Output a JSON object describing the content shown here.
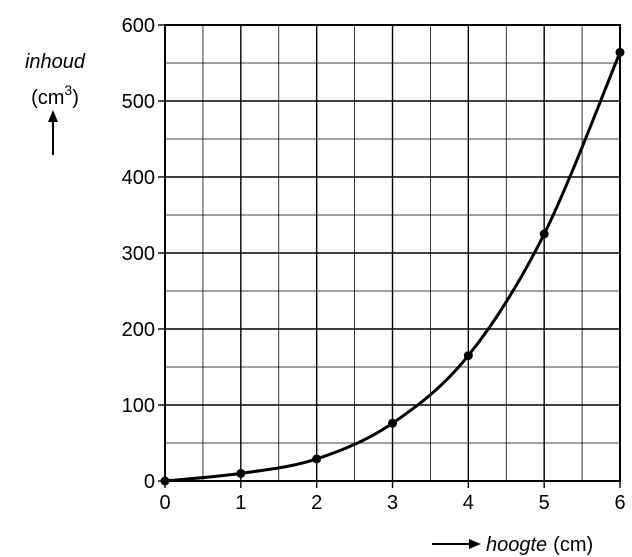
{
  "chart_data": {
    "type": "line",
    "ylabel": {
      "name": "inhoud",
      "unit_open": "(cm",
      "unit_exp": "3",
      "unit_close": ")"
    },
    "xlabel": {
      "name": "hoogte",
      "unit": "(cm)"
    },
    "xlim": [
      0,
      6
    ],
    "ylim": [
      0,
      600
    ],
    "x_ticks": [
      0,
      1,
      2,
      3,
      4,
      5,
      6
    ],
    "y_ticks": [
      0,
      100,
      200,
      300,
      400,
      500,
      600
    ],
    "x_tick_labels": [
      "0",
      "1",
      "2",
      "3",
      "4",
      "5",
      "6"
    ],
    "y_tick_labels": [
      "0",
      "100",
      "200",
      "300",
      "400",
      "500",
      "600"
    ],
    "grid": true,
    "series": [
      {
        "points": [
          {
            "x": 0,
            "y": 0
          },
          {
            "x": 1,
            "y": 10
          },
          {
            "x": 2,
            "y": 29
          },
          {
            "x": 3,
            "y": 76
          },
          {
            "x": 4,
            "y": 165
          },
          {
            "x": 5,
            "y": 325
          },
          {
            "x": 6,
            "y": 564
          }
        ],
        "color": "#000000"
      }
    ]
  }
}
